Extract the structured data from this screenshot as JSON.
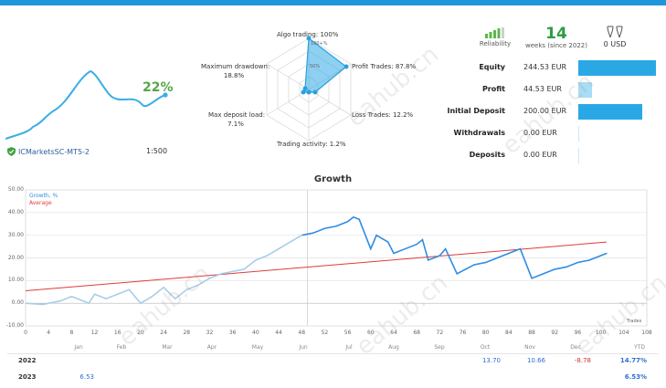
{
  "broker": {
    "name": "ICMarketsSC-MT5-2",
    "leverage": "1:500"
  },
  "mini_chart": {
    "gain_label": "22%"
  },
  "radar": {
    "algo": "Algo trading: 100%",
    "profit_trades": "Profit Trades: 87.8%",
    "loss_trades": "Loss Trades: 12.2%",
    "trading_activity": "Trading activity: 1.2%",
    "max_deposit_load_title": "Max deposit load:",
    "max_deposit_load_value": "7.1%",
    "max_drawdown_title": "Maximum drawdown:",
    "max_drawdown_value": "18.8%",
    "ring_100": "100+%",
    "ring_50": "50%"
  },
  "stats": {
    "reliability_label": "Reliability",
    "weeks_value": "14",
    "weeks_label": "weeks (since 2022)",
    "usd_value": "0 USD"
  },
  "account": {
    "rows": [
      {
        "label": "Equity",
        "value": "244.53 EUR"
      },
      {
        "label": "Profit",
        "value": "44.53 EUR"
      },
      {
        "label": "Initial Deposit",
        "value": "200.00 EUR"
      },
      {
        "label": "Withdrawals",
        "value": "0.00 EUR"
      },
      {
        "label": "Deposits",
        "value": "0.00 EUR"
      }
    ],
    "bar_fractions": [
      1.0,
      0.18,
      0.82,
      0.0,
      0.0
    ],
    "colors": {
      "strong": "#2aa8e6",
      "light": "#a9dcf5"
    }
  },
  "growth": {
    "title": "Growth",
    "legend_growth": "Growth, %",
    "legend_average": "Average",
    "trades_label": "Trades",
    "growth_color": "#2f8de4",
    "growth_early_color": "#a8cde8",
    "average_color": "#e03a3a"
  },
  "chart_data": {
    "type": "line",
    "title": "Growth",
    "xlabel": "Trades",
    "ylabel": "",
    "ylim": [
      -10,
      50
    ],
    "xlim": [
      0,
      108
    ],
    "y_ticks": [
      "50.00",
      "40.00",
      "30.00",
      "20.00",
      "10.00",
      "0.00",
      "-10.00"
    ],
    "x_ticks": [
      "0",
      "4",
      "8",
      "12",
      "16",
      "20",
      "24",
      "28",
      "32",
      "36",
      "40",
      "44",
      "48",
      "52",
      "56",
      "60",
      "64",
      "68",
      "72",
      "76",
      "80",
      "84",
      "88",
      "92",
      "96",
      "100",
      "104",
      "108"
    ],
    "months": [
      "Jan",
      "Feb",
      "Mar",
      "Apr",
      "May",
      "Jun",
      "Jul",
      "Aug",
      "Sep",
      "Oct",
      "Nov",
      "Dec",
      "YTD"
    ],
    "series": [
      {
        "name": "Growth, %",
        "x": [
          0,
          3,
          6,
          8,
          11,
          12,
          14,
          16,
          18,
          20,
          22,
          24,
          26,
          28,
          30,
          32,
          34,
          36,
          38,
          40,
          42,
          44,
          46,
          48,
          50,
          52,
          54,
          56,
          57,
          58,
          60,
          61,
          63,
          64,
          66,
          68,
          69,
          70,
          72,
          73,
          75,
          78,
          80,
          82,
          84,
          86,
          88,
          90,
          92,
          94,
          96,
          98,
          99,
          101
        ],
        "y": [
          0,
          -0.5,
          1,
          3,
          0,
          4,
          2,
          4,
          6,
          0,
          3,
          7,
          2,
          6,
          8,
          11,
          13,
          14,
          15,
          19,
          21,
          24,
          27,
          30,
          31,
          33,
          34,
          36,
          38,
          37,
          24,
          30,
          27,
          22,
          24,
          26,
          28,
          19,
          21,
          24,
          13,
          17,
          18,
          20,
          22,
          24,
          11,
          13,
          15,
          16,
          18,
          19,
          20,
          22
        ]
      },
      {
        "name": "Average",
        "x": [
          0,
          101
        ],
        "y": [
          5.5,
          27
        ]
      }
    ]
  },
  "yearly": {
    "rows": [
      {
        "year": "2022",
        "values": [
          "",
          "",
          "",
          "",
          "",
          "",
          "",
          "",
          "",
          "13.70",
          "10.66",
          "-8.78"
        ],
        "ytd": "14.77%"
      },
      {
        "year": "2023",
        "values": [
          "6.53",
          "",
          "",
          "",
          "",
          "",
          "",
          "",
          "",
          "",
          "",
          ""
        ],
        "ytd": "6.53%"
      }
    ]
  },
  "watermark": "eahub.cn"
}
